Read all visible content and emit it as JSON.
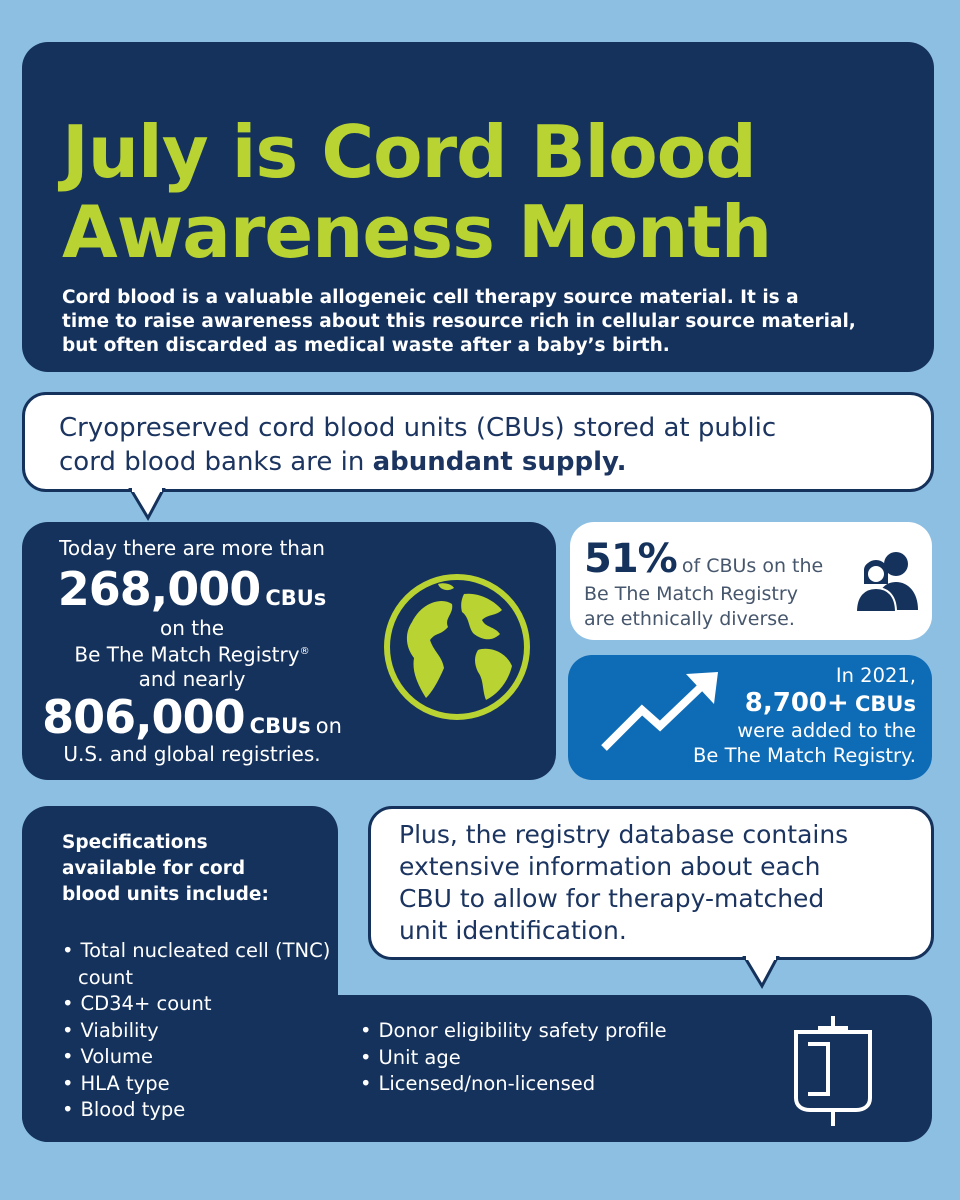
{
  "header": {
    "title_line1": "July is Cord Blood",
    "title_line2": "Awareness Month",
    "intro_line1": "Cord blood is a valuable allogeneic cell therapy source material. It is a",
    "intro_line2": "time to raise awareness about this resource rich in cellular source material,",
    "intro_line3": "but often discarded as medical waste after a baby’s birth."
  },
  "supply": {
    "line1": "Cryopreserved cord blood units (CBUs) stored at public",
    "line2_prefix": "cord blood banks are in ",
    "line2_strong": "abundant supply."
  },
  "stats": {
    "intro": "Today there are more than",
    "count1": "268,000",
    "unit1": "CBUs",
    "on_the": "on the",
    "registry": "Be The Match Registry",
    "registered_mark": "®",
    "and_nearly": "and nearly",
    "count2": "806,000",
    "unit2": "CBUs",
    "on_word": "on",
    "global": "U.S. and global registries."
  },
  "diversity": {
    "percent": "51%",
    "line1": "of CBUs on the",
    "line2": "Be The Match Registry",
    "line3": "are ethnically diverse."
  },
  "added": {
    "year": "In 2021,",
    "count": "8,700+",
    "unit": "CBUs",
    "line2": "were added to the",
    "line3": "Be The Match Registry."
  },
  "specs": {
    "heading_line1": "Specifications",
    "heading_line2": "available for cord",
    "heading_line3": "blood units include:",
    "list_left": [
      "Total nucleated cell (TNC) count",
      "CD34+ count",
      "Viability",
      "Volume",
      "HLA type",
      "Blood type"
    ],
    "list_right": [
      "Donor eligibility safety profile",
      "Unit age",
      "Licensed/non-licensed"
    ]
  },
  "database": {
    "line1": "Plus, the registry database contains",
    "line2": "extensive information about each",
    "line3": "CBU to allow for therapy-matched",
    "line4": "unit identification."
  },
  "colors": {
    "navy": "#15325c",
    "lime": "#b9d332",
    "sky": "#8dbfe3",
    "blue": "#0e6bb5"
  },
  "icons": [
    "globe-icon",
    "people-icon",
    "trend-arrow-icon",
    "blood-bag-icon"
  ]
}
